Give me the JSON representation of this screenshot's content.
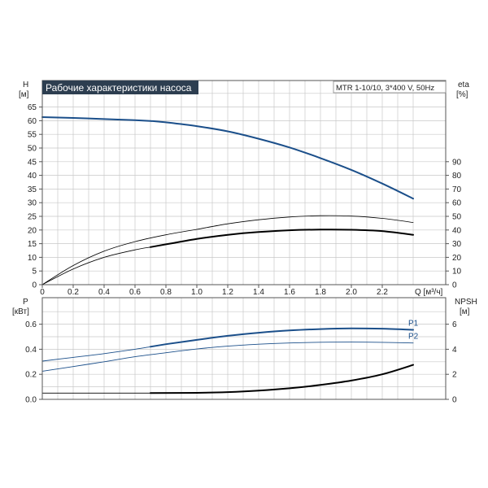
{
  "title": "Рабочие характеристики насоса",
  "model": "MTR 1-10/10, 3*400 V, 50Hz",
  "colors": {
    "head": "#1b4f8a",
    "power": "#1b4f8a",
    "title_bg": "#2d3e50",
    "grid": "#c8c8c8",
    "black": "#000000"
  },
  "chart_data": [
    {
      "type": "line",
      "panel": "top",
      "x_label": "Q [м³/ч]",
      "xlim": [
        0,
        2.5
      ],
      "x_ticks": [
        "0",
        "0.2",
        "0.4",
        "0.6",
        "0.8",
        "1.0",
        "1.2",
        "1.4",
        "1.6",
        "1.8",
        "2.0",
        "2.2"
      ],
      "left_axis": {
        "label": [
          "H",
          "[м]"
        ],
        "ylim": [
          0,
          70
        ],
        "ticks": [
          "0",
          "5",
          "10",
          "15",
          "20",
          "25",
          "30",
          "35",
          "40",
          "45",
          "50",
          "55",
          "60",
          "65"
        ]
      },
      "right_axis": {
        "label": [
          "eta",
          "[%]"
        ],
        "ylim": [
          0,
          140
        ],
        "ticks": [
          "0",
          "10",
          "20",
          "30",
          "40",
          "50",
          "60",
          "70",
          "80",
          "90"
        ]
      },
      "grid": true,
      "series": [
        {
          "axis": "left",
          "style": "thick-blue",
          "x": [
            0,
            0.2,
            0.4,
            0.6,
            0.7,
            0.8,
            1.0,
            1.2,
            1.4,
            1.6,
            1.8,
            2.0,
            2.2,
            2.4
          ],
          "y": [
            61.3,
            61.0,
            60.6,
            60.2,
            59.9,
            59.4,
            58.0,
            56.1,
            53.4,
            50.2,
            46.3,
            42.0,
            37.0,
            31.5
          ]
        },
        {
          "axis": "right",
          "style": "thin-black",
          "x": [
            0,
            0.2,
            0.4,
            0.6,
            0.8,
            1.0,
            1.2,
            1.4,
            1.6,
            1.8,
            2.0,
            2.2,
            2.4
          ],
          "y": [
            0,
            14,
            24.5,
            31.5,
            36.5,
            40.5,
            44.5,
            47.5,
            49.5,
            50.5,
            50.2,
            48.5,
            45.5
          ]
        },
        {
          "axis": "right",
          "style": "thin-black",
          "x": [
            0,
            0.2,
            0.4,
            0.6,
            0.7
          ],
          "y": [
            0,
            11.5,
            20,
            25.5,
            27.5
          ]
        },
        {
          "axis": "right",
          "style": "thick-black",
          "x": [
            0.7,
            0.8,
            1.0,
            1.2,
            1.4,
            1.6,
            1.8,
            2.0,
            2.2,
            2.4
          ],
          "y": [
            27.5,
            29.5,
            33.5,
            36.5,
            38.5,
            39.8,
            40.3,
            40.2,
            39.2,
            36.5
          ]
        }
      ]
    },
    {
      "type": "line",
      "panel": "bottom",
      "xlim": [
        0,
        2.5
      ],
      "left_axis": {
        "label": [
          "P",
          "[кВт]"
        ],
        "ylim": [
          0,
          0.7
        ],
        "ticks": [
          "0.0",
          "0.2",
          "0.4",
          "0.6"
        ]
      },
      "right_axis": {
        "label": [
          "NPSH",
          "[м]"
        ],
        "ylim": [
          0,
          7
        ],
        "ticks": [
          "0",
          "2",
          "4",
          "6"
        ]
      },
      "grid": true,
      "series": [
        {
          "name": "P1",
          "axis": "left",
          "style": "thin-blue-then-thick",
          "x": [
            0,
            0.2,
            0.4,
            0.6,
            0.7,
            0.8,
            1.0,
            1.2,
            1.4,
            1.6,
            1.8,
            2.0,
            2.2,
            2.4
          ],
          "y": [
            0.305,
            0.335,
            0.365,
            0.4,
            0.42,
            0.44,
            0.475,
            0.507,
            0.532,
            0.55,
            0.561,
            0.566,
            0.564,
            0.555
          ]
        },
        {
          "name": "P2",
          "axis": "left",
          "style": "thin-blue",
          "x": [
            0,
            0.2,
            0.4,
            0.6,
            0.8,
            1.0,
            1.2,
            1.4,
            1.6,
            1.8,
            2.0,
            2.2,
            2.4
          ],
          "y": [
            0.225,
            0.262,
            0.3,
            0.34,
            0.372,
            0.402,
            0.425,
            0.44,
            0.45,
            0.456,
            0.457,
            0.455,
            0.45
          ]
        },
        {
          "axis": "right",
          "style": "thin-black",
          "x": [
            0,
            0.7
          ],
          "y": [
            0.5,
            0.5
          ]
        },
        {
          "axis": "right",
          "style": "thick-black",
          "x": [
            0.7,
            1.0,
            1.2,
            1.4,
            1.6,
            1.8,
            2.0,
            2.2,
            2.4
          ],
          "y": [
            0.5,
            0.52,
            0.58,
            0.7,
            0.88,
            1.15,
            1.5,
            2.0,
            2.75
          ]
        }
      ]
    }
  ]
}
